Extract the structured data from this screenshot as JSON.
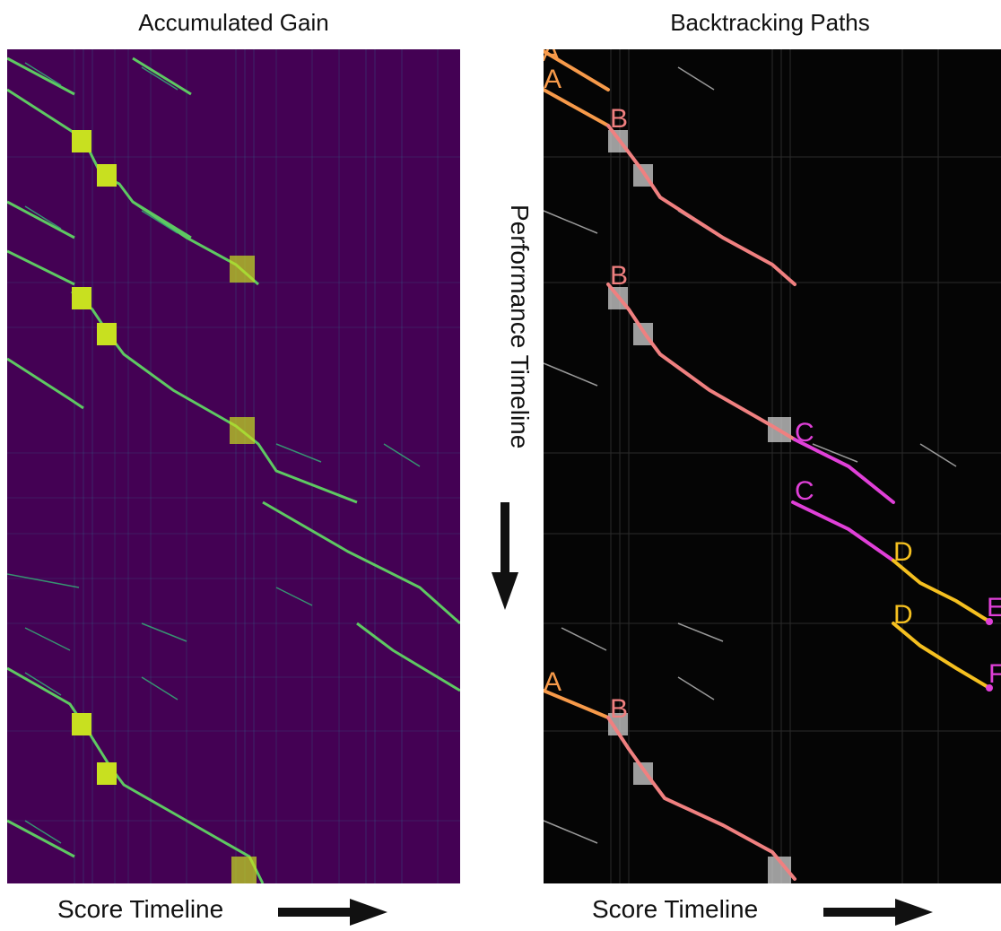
{
  "left_panel": {
    "title": "Accumulated Gain",
    "xlabel": "Score Timeline"
  },
  "right_panel": {
    "title": "Backtracking Paths",
    "xlabel": "Score Timeline"
  },
  "ylabel": "Performance Timeline",
  "colors": {
    "viridis_bg": "#440154",
    "viridis_dark": "#31688e",
    "viridis_mid": "#35b779",
    "viridis_bright": "#c8e020",
    "dark_bg": "#050505",
    "path_A": "#f79a4a",
    "path_B": "#f08080",
    "path_C": "#e040d8",
    "path_D": "#f5c020",
    "path_E": "#e040d8"
  },
  "path_labels": {
    "A": "A",
    "B": "B",
    "C": "C",
    "D": "D",
    "E": "E",
    "F": "F"
  }
}
